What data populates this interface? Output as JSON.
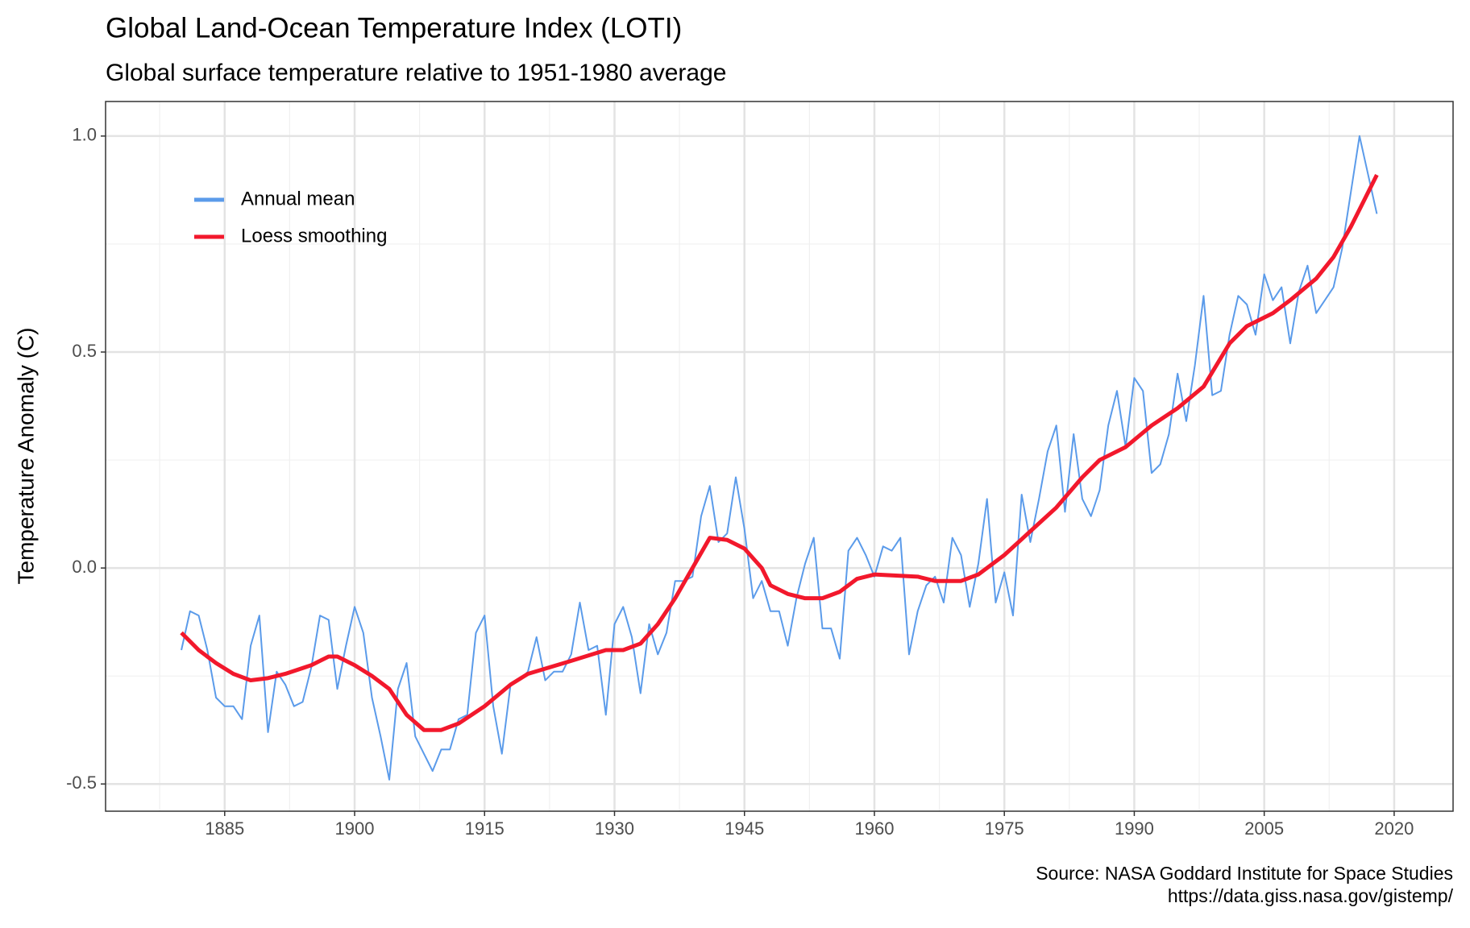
{
  "chart_data": {
    "type": "line",
    "title": "Global Land-Ocean Temperature Index (LOTI)",
    "subtitle": "Global surface temperature relative to 1951-1980 average",
    "y_label": "Temperature Anomaly (C)",
    "caption": [
      "Source: NASA Goddard Institute for Space Studies",
      "https://data.giss.nasa.gov/gistemp/"
    ],
    "xlim": [
      1871.25,
      2026.8
    ],
    "xticks": [
      1885,
      1900,
      1915,
      1930,
      1945,
      1960,
      1975,
      1990,
      2005,
      2020
    ],
    "ylim": [
      -0.563,
      1.08
    ],
    "yticks": [
      {
        "value": -0.5,
        "label": "-0.5"
      },
      {
        "value": 0,
        "label": "0.0"
      },
      {
        "value": 0.5,
        "label": "0.5"
      },
      {
        "value": 1,
        "label": "1.0"
      }
    ],
    "grid": true,
    "legend_position": "top-left",
    "series": [
      {
        "name": "Annual mean",
        "color": "#5b9bea",
        "width": 2,
        "x": [
          1880,
          1881,
          1882,
          1883,
          1884,
          1885,
          1886,
          1887,
          1888,
          1889,
          1890,
          1891,
          1892,
          1893,
          1894,
          1895,
          1896,
          1897,
          1898,
          1899,
          1900,
          1901,
          1902,
          1903,
          1904,
          1905,
          1906,
          1907,
          1908,
          1909,
          1910,
          1911,
          1912,
          1913,
          1914,
          1915,
          1916,
          1917,
          1918,
          1919,
          1920,
          1921,
          1922,
          1923,
          1924,
          1925,
          1926,
          1927,
          1928,
          1929,
          1930,
          1931,
          1932,
          1933,
          1934,
          1935,
          1936,
          1937,
          1938,
          1939,
          1940,
          1941,
          1942,
          1943,
          1944,
          1945,
          1946,
          1947,
          1948,
          1949,
          1950,
          1951,
          1952,
          1953,
          1954,
          1955,
          1956,
          1957,
          1958,
          1959,
          1960,
          1961,
          1962,
          1963,
          1964,
          1965,
          1966,
          1967,
          1968,
          1969,
          1970,
          1971,
          1972,
          1973,
          1974,
          1975,
          1976,
          1977,
          1978,
          1979,
          1980,
          1981,
          1982,
          1983,
          1984,
          1985,
          1986,
          1987,
          1988,
          1989,
          1990,
          1991,
          1992,
          1993,
          1994,
          1995,
          1996,
          1997,
          1998,
          1999,
          2000,
          2001,
          2002,
          2003,
          2004,
          2005,
          2006,
          2007,
          2008,
          2009,
          2010,
          2011,
          2012,
          2013,
          2014,
          2015,
          2016,
          2017,
          2018
        ],
        "values": [
          -0.19,
          -0.1,
          -0.11,
          -0.19,
          -0.3,
          -0.32,
          -0.32,
          -0.35,
          -0.18,
          -0.11,
          -0.38,
          -0.24,
          -0.27,
          -0.32,
          -0.31,
          -0.23,
          -0.11,
          -0.12,
          -0.28,
          -0.18,
          -0.09,
          -0.15,
          -0.3,
          -0.39,
          -0.49,
          -0.28,
          -0.22,
          -0.39,
          -0.43,
          -0.47,
          -0.42,
          -0.42,
          -0.35,
          -0.34,
          -0.15,
          -0.11,
          -0.32,
          -0.43,
          -0.27,
          -0.26,
          -0.24,
          -0.16,
          -0.26,
          -0.24,
          -0.24,
          -0.2,
          -0.08,
          -0.19,
          -0.18,
          -0.34,
          -0.13,
          -0.09,
          -0.16,
          -0.29,
          -0.13,
          -0.2,
          -0.15,
          -0.03,
          -0.03,
          -0.02,
          0.12,
          0.19,
          0.06,
          0.08,
          0.21,
          0.09,
          -0.07,
          -0.03,
          -0.1,
          -0.1,
          -0.18,
          -0.07,
          0.01,
          0.07,
          -0.14,
          -0.14,
          -0.21,
          0.04,
          0.07,
          0.03,
          -0.02,
          0.05,
          0.04,
          0.07,
          -0.2,
          -0.1,
          -0.04,
          -0.02,
          -0.08,
          0.07,
          0.03,
          -0.09,
          0.01,
          0.16,
          -0.08,
          -0.01,
          -0.11,
          0.17,
          0.06,
          0.16,
          0.27,
          0.33,
          0.13,
          0.31,
          0.16,
          0.12,
          0.18,
          0.33,
          0.41,
          0.28,
          0.44,
          0.41,
          0.22,
          0.24,
          0.31,
          0.45,
          0.34,
          0.47,
          0.63,
          0.4,
          0.41,
          0.54,
          0.63,
          0.61,
          0.54,
          0.68,
          0.62,
          0.65,
          0.52,
          0.64,
          0.7,
          0.59,
          0.62,
          0.65,
          0.74,
          0.87,
          1.0,
          0.91,
          0.82
        ]
      },
      {
        "name": "Loess smoothing",
        "color": "#f2182c",
        "width": 5,
        "x": [
          1880,
          1882,
          1884,
          1886,
          1888,
          1890,
          1892,
          1895,
          1897,
          1898,
          1900,
          1902,
          1904,
          1906,
          1908,
          1910,
          1912,
          1915,
          1918,
          1920,
          1925,
          1929,
          1931,
          1933,
          1935,
          1937,
          1939,
          1940,
          1941,
          1943,
          1945,
          1947,
          1948,
          1950,
          1952,
          1954,
          1956,
          1958,
          1960,
          1965,
          1967,
          1970,
          1972,
          1975,
          1978,
          1981,
          1984,
          1986,
          1989,
          1992,
          1995,
          1998,
          2001,
          2003,
          2006,
          2008,
          2011,
          2013,
          2015,
          2018
        ],
        "values": [
          -0.15,
          -0.19,
          -0.22,
          -0.245,
          -0.26,
          -0.255,
          -0.245,
          -0.225,
          -0.205,
          -0.205,
          -0.225,
          -0.25,
          -0.28,
          -0.34,
          -0.375,
          -0.375,
          -0.36,
          -0.32,
          -0.27,
          -0.245,
          -0.215,
          -0.19,
          -0.19,
          -0.175,
          -0.13,
          -0.07,
          0.0,
          0.035,
          0.07,
          0.065,
          0.045,
          0.0,
          -0.04,
          -0.06,
          -0.07,
          -0.07,
          -0.055,
          -0.025,
          -0.015,
          -0.02,
          -0.03,
          -0.03,
          -0.015,
          0.03,
          0.085,
          0.14,
          0.21,
          0.25,
          0.28,
          0.33,
          0.37,
          0.42,
          0.52,
          0.56,
          0.59,
          0.62,
          0.67,
          0.72,
          0.79,
          0.91
        ]
      }
    ]
  }
}
